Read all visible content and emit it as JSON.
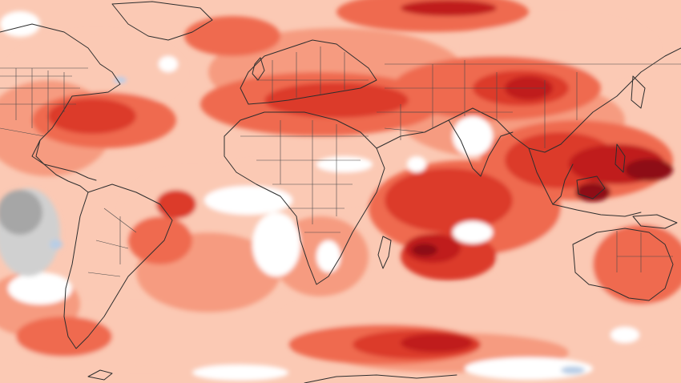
{
  "map": {
    "type": "global temperature anomaly field",
    "projection": "equirectangular",
    "colors": {
      "white": "#ffffff",
      "pale": "#fbc9b4",
      "light": "#f69b80",
      "medium": "#ef6a4f",
      "strong": "#dc3a2b",
      "deep": "#c01e1f",
      "darkest": "#8e0b14",
      "cold_grey": "#a6a6a6",
      "cold_light_grey": "#d0d0d0",
      "cold_blue": "#b8cde6",
      "coastline": "#2e2e2e",
      "border": "#4a4a4a"
    },
    "legend": []
  }
}
